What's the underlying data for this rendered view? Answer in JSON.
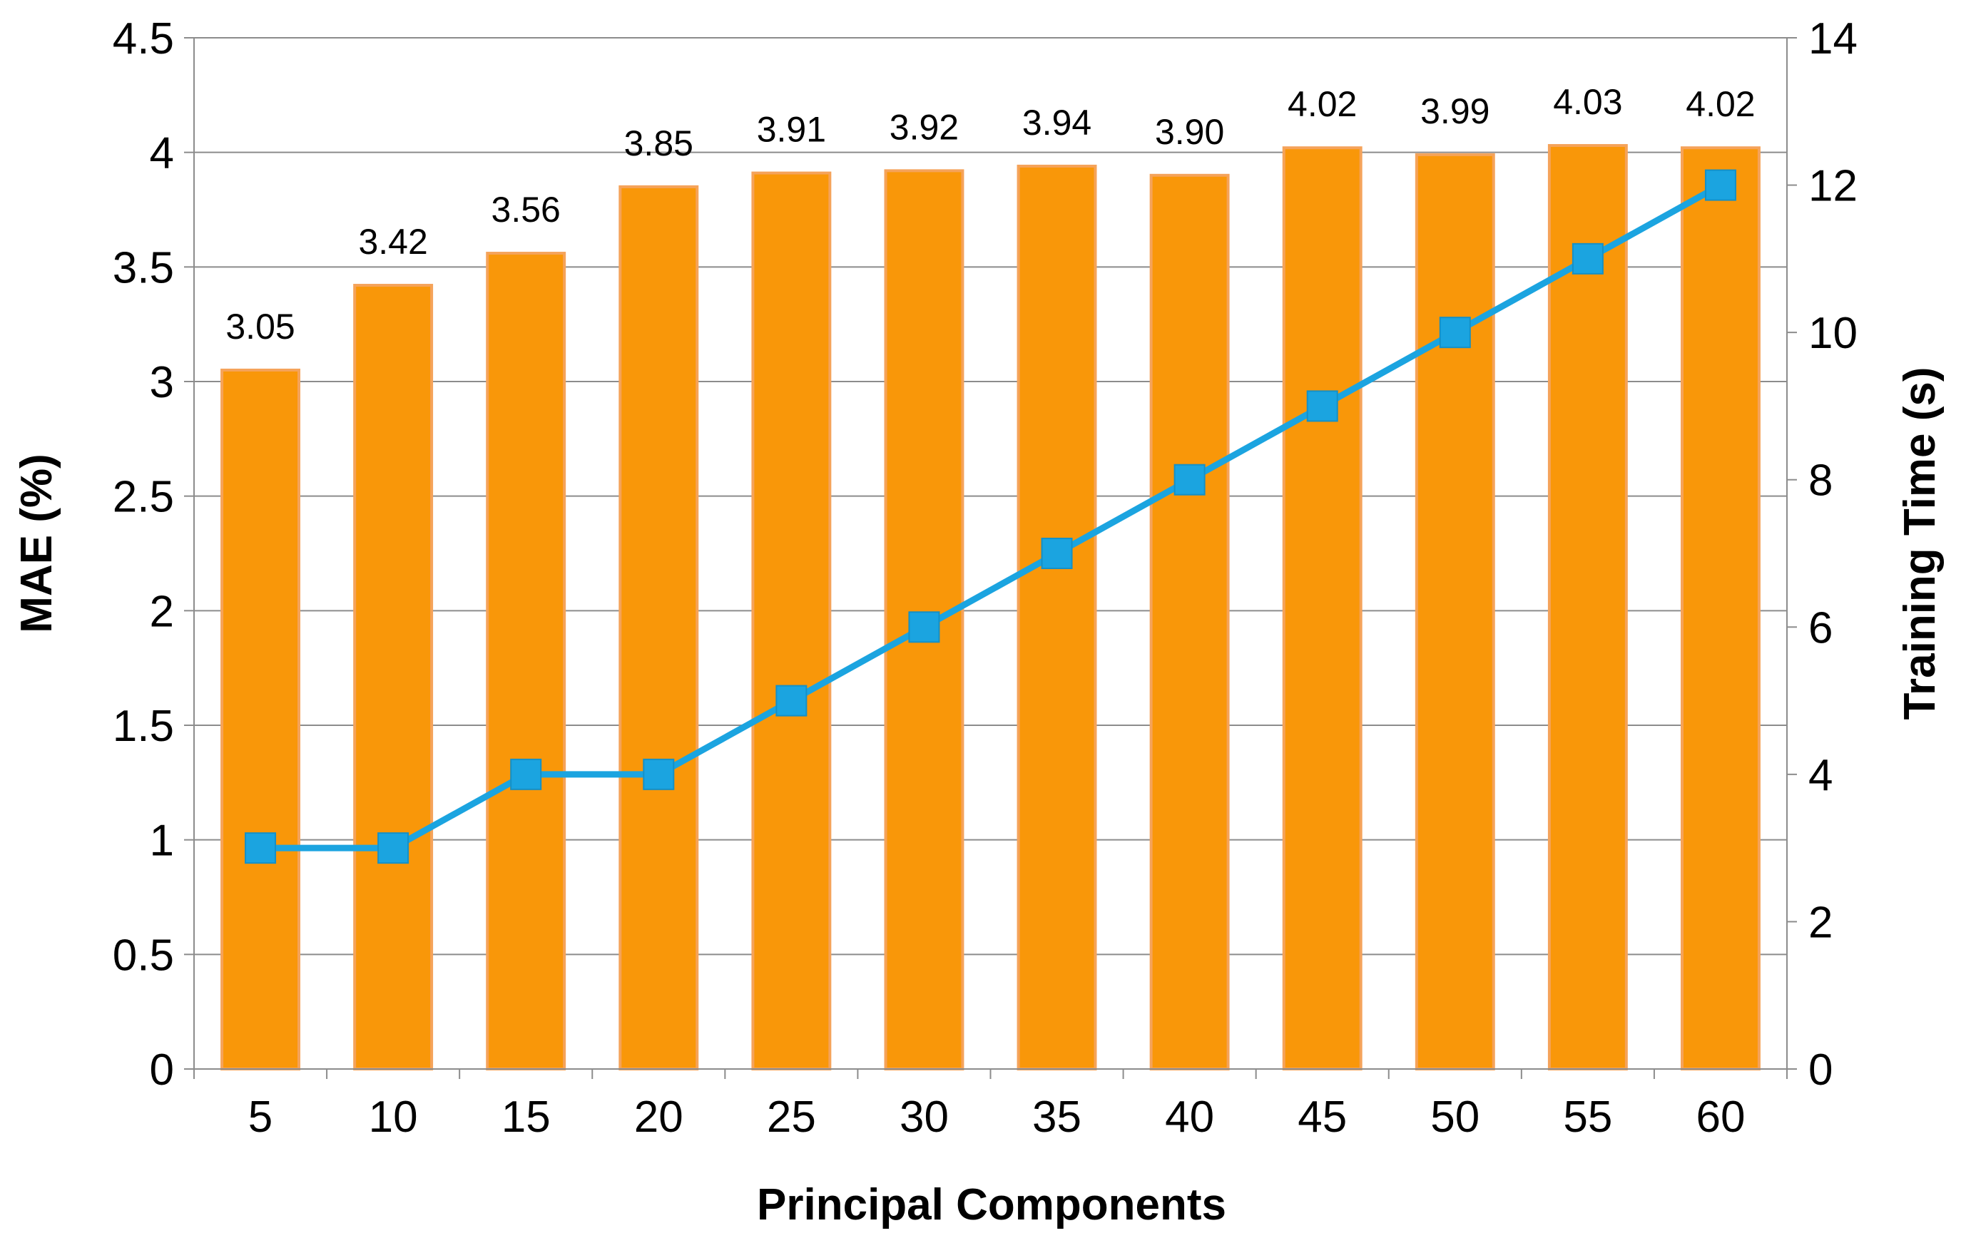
{
  "chart_data": {
    "type": "bar",
    "categories": [
      "5",
      "10",
      "15",
      "20",
      "25",
      "30",
      "35",
      "40",
      "45",
      "50",
      "55",
      "60"
    ],
    "series": [
      {
        "name": "MAE (%)",
        "type": "bar",
        "axis": "left",
        "values": [
          3.05,
          3.42,
          3.56,
          3.85,
          3.91,
          3.92,
          3.94,
          3.9,
          4.02,
          3.99,
          4.03,
          4.02
        ],
        "labels": [
          "3.05",
          "3.42",
          "3.56",
          "3.85",
          "3.91",
          "3.92",
          "3.94",
          "3.90",
          "4.02",
          "3.99",
          "4.03",
          "4.02"
        ],
        "color": "#F99709"
      },
      {
        "name": "Training Time (s)",
        "type": "line",
        "axis": "right",
        "values": [
          3,
          3,
          4,
          4,
          5,
          6,
          7,
          8,
          9,
          10,
          11,
          12
        ],
        "color": "#1BA4E0",
        "marker": "square"
      }
    ],
    "xlabel": "Principal Components",
    "ylabel": "MAE (%)",
    "y2label": "Training Time (s)",
    "ylim": [
      0,
      4.5
    ],
    "y2lim": [
      0,
      14
    ],
    "yticks": [
      "0",
      "0.5",
      "1",
      "1.5",
      "2",
      "2.5",
      "3",
      "3.5",
      "4",
      "4.5"
    ],
    "y2ticks": [
      "0",
      "2",
      "4",
      "6",
      "8",
      "10",
      "12",
      "14"
    ],
    "grid": true
  }
}
